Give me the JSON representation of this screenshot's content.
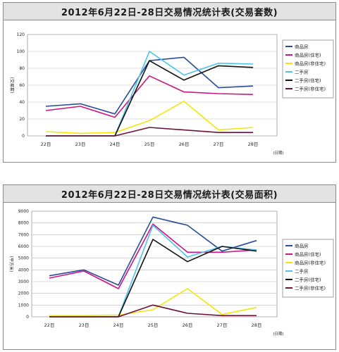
{
  "chart_data": [
    {
      "type": "line",
      "title": "2012年6月22日-28日交易情况统计表(交易套数)",
      "ylabel": "(交易套)",
      "xlabel": "(日期)",
      "categories": [
        "22日",
        "23日",
        "24日",
        "25日",
        "26日",
        "27日",
        "28日"
      ],
      "yticks": [
        0,
        20,
        40,
        60,
        80,
        100,
        120
      ],
      "ylim": [
        0,
        120
      ],
      "grid": true,
      "legend": "right",
      "series": [
        {
          "name": "商品房",
          "color": "#2b4c9b",
          "values": [
            35,
            38,
            26,
            89,
            93,
            57,
            59
          ]
        },
        {
          "name": "商品房(住宅)",
          "color": "#d0137f",
          "values": [
            30,
            35,
            22,
            71,
            52,
            50,
            49
          ]
        },
        {
          "name": "商品房(非住宅)",
          "color": "#f5e60a",
          "values": [
            5,
            3,
            4,
            18,
            41,
            7,
            10
          ]
        },
        {
          "name": "二手房",
          "color": "#4cc3ec",
          "values": [
            0,
            0,
            0,
            100,
            72,
            86,
            85
          ]
        },
        {
          "name": "二手房(住宅)",
          "color": "#111111",
          "values": [
            0,
            0,
            0,
            89,
            66,
            83,
            81
          ]
        },
        {
          "name": "二手房(非住宅)",
          "color": "#6b1238",
          "values": [
            0,
            0,
            0,
            10,
            7,
            4,
            4
          ]
        }
      ]
    },
    {
      "type": "line",
      "title": "2012年6月22日-28日交易情况统计表(交易面积)",
      "ylabel": "(平方米)",
      "xlabel": "(日期)",
      "categories": [
        "22日",
        "23日",
        "24日",
        "25日",
        "26日",
        "27日",
        "28日"
      ],
      "yticks": [
        0,
        1000,
        2000,
        3000,
        4000,
        5000,
        6000,
        7000,
        8000,
        9000
      ],
      "ylim": [
        0,
        9000
      ],
      "grid": true,
      "legend": "right",
      "series": [
        {
          "name": "商品房",
          "color": "#2b4c9b",
          "values": [
            3500,
            4000,
            2700,
            8500,
            7800,
            5600,
            6500
          ]
        },
        {
          "name": "商品房(住宅)",
          "color": "#d0137f",
          "values": [
            3300,
            3900,
            2400,
            7900,
            5500,
            5500,
            5700
          ]
        },
        {
          "name": "商品房(非住宅)",
          "color": "#f5e60a",
          "values": [
            100,
            100,
            150,
            600,
            2400,
            200,
            800
          ]
        },
        {
          "name": "二手房",
          "color": "#4cc3ec",
          "values": [
            0,
            0,
            0,
            7800,
            5100,
            6000,
            5700
          ]
        },
        {
          "name": "二手房(住宅)",
          "color": "#111111",
          "values": [
            0,
            0,
            0,
            6600,
            4700,
            6000,
            5600
          ]
        },
        {
          "name": "二手房(非住宅)",
          "color": "#6b1238",
          "values": [
            0,
            0,
            0,
            1000,
            300,
            100,
            100
          ]
        }
      ]
    }
  ]
}
